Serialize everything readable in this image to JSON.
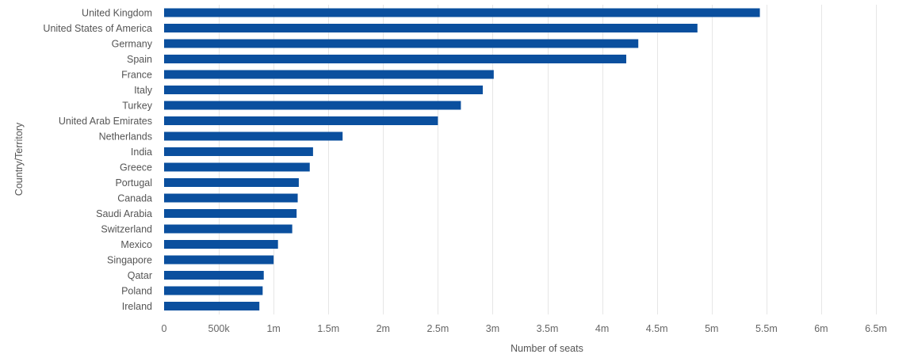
{
  "chart_data": {
    "type": "bar",
    "orientation": "horizontal",
    "categories": [
      "United Kingdom",
      "United States of America",
      "Germany",
      "Spain",
      "France",
      "Italy",
      "Turkey",
      "United Arab Emirates",
      "Netherlands",
      "India",
      "Greece",
      "Portugal",
      "Canada",
      "Saudi Arabia",
      "Switzerland",
      "Mexico",
      "Singapore",
      "Qatar",
      "Poland",
      "Ireland"
    ],
    "values": [
      5440000,
      4870000,
      4330000,
      4220000,
      3010000,
      2910000,
      2710000,
      2500000,
      1630000,
      1360000,
      1330000,
      1230000,
      1220000,
      1210000,
      1170000,
      1040000,
      1000000,
      910000,
      900000,
      870000
    ],
    "xlabel": "Number of seats",
    "ylabel": "Country/Territory",
    "xlim": [
      0,
      6500000
    ],
    "x_ticks": [
      0,
      500000,
      1000000,
      1500000,
      2000000,
      2500000,
      3000000,
      3500000,
      4000000,
      4500000,
      5000000,
      5500000,
      6000000,
      6500000
    ],
    "x_tick_labels": [
      "0",
      "500k",
      "1m",
      "1.5m",
      "2m",
      "2.5m",
      "3m",
      "3.5m",
      "4m",
      "4.5m",
      "5m",
      "5.5m",
      "6m",
      "6.5m"
    ],
    "grid": "vertical",
    "legend": "none",
    "bar_color": "#0a4f9e"
  }
}
